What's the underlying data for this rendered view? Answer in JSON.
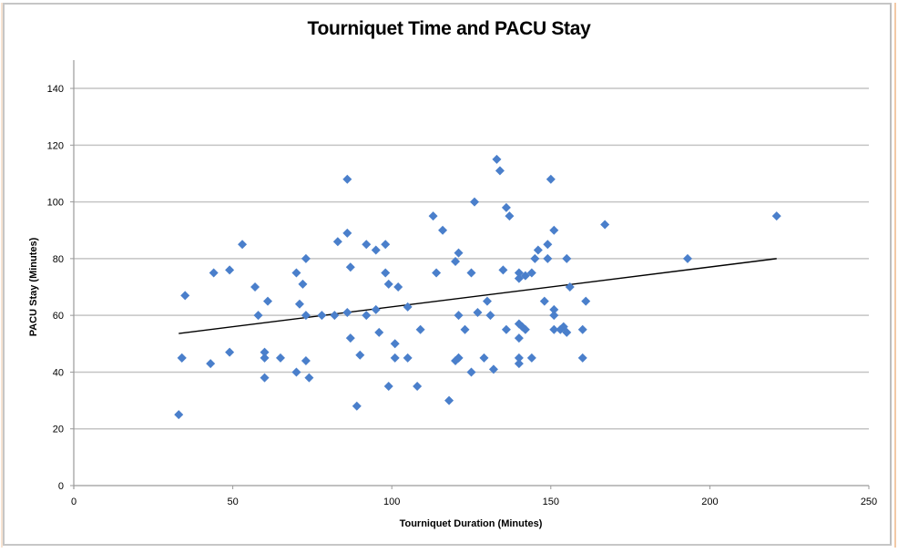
{
  "chart_data": {
    "type": "scatter",
    "title": "Tourniquet Time and PACU Stay",
    "xlabel": "Tourniquet Duration (Minutes)",
    "ylabel": "PACU Stay (Minutes)",
    "xlim": [
      0,
      250
    ],
    "ylim": [
      0,
      150
    ],
    "xticks": [
      0,
      50,
      100,
      150,
      200,
      250
    ],
    "yticks": [
      0,
      20,
      40,
      60,
      80,
      100,
      120,
      140
    ],
    "grid": {
      "horizontal": true,
      "vertical": false
    },
    "legend": null,
    "marker": {
      "shape": "diamond",
      "color": "#4a7fcb"
    },
    "trendline": {
      "type": "linear",
      "color": "#000000",
      "x": [
        33,
        221
      ],
      "y": [
        53.6,
        80
      ]
    },
    "series": [
      {
        "name": "PACU Stay",
        "points": [
          [
            33,
            25
          ],
          [
            34,
            45
          ],
          [
            34,
            45
          ],
          [
            35,
            67
          ],
          [
            43,
            43
          ],
          [
            44,
            75
          ],
          [
            49,
            47
          ],
          [
            49,
            76
          ],
          [
            53,
            85
          ],
          [
            57,
            70
          ],
          [
            58,
            60
          ],
          [
            60,
            47
          ],
          [
            60,
            45
          ],
          [
            60,
            38
          ],
          [
            61,
            65
          ],
          [
            65,
            45
          ],
          [
            70,
            75
          ],
          [
            70,
            40
          ],
          [
            71,
            64
          ],
          [
            72,
            71
          ],
          [
            73,
            80
          ],
          [
            73,
            60
          ],
          [
            73,
            44
          ],
          [
            74,
            38
          ],
          [
            78,
            60
          ],
          [
            82,
            60
          ],
          [
            83,
            86
          ],
          [
            86,
            108
          ],
          [
            86,
            61
          ],
          [
            86,
            89
          ],
          [
            87,
            77
          ],
          [
            87,
            52
          ],
          [
            89,
            28
          ],
          [
            90,
            46
          ],
          [
            92,
            85
          ],
          [
            92,
            60
          ],
          [
            95,
            83
          ],
          [
            95,
            62
          ],
          [
            96,
            54
          ],
          [
            98,
            85
          ],
          [
            98,
            75
          ],
          [
            99,
            35
          ],
          [
            99,
            71
          ],
          [
            101,
            50
          ],
          [
            101,
            45
          ],
          [
            102,
            70
          ],
          [
            105,
            45
          ],
          [
            105,
            63
          ],
          [
            108,
            35
          ],
          [
            109,
            55
          ],
          [
            113,
            95
          ],
          [
            114,
            75
          ],
          [
            116,
            90
          ],
          [
            118,
            30
          ],
          [
            120,
            79
          ],
          [
            120,
            44
          ],
          [
            121,
            45
          ],
          [
            121,
            82
          ],
          [
            121,
            60
          ],
          [
            121,
            45
          ],
          [
            123,
            55
          ],
          [
            125,
            75
          ],
          [
            125,
            40
          ],
          [
            126,
            100
          ],
          [
            127,
            61
          ],
          [
            129,
            45
          ],
          [
            130,
            65
          ],
          [
            131,
            60
          ],
          [
            132,
            41
          ],
          [
            133,
            115
          ],
          [
            134,
            111
          ],
          [
            135,
            76
          ],
          [
            136,
            98
          ],
          [
            136,
            55
          ],
          [
            137,
            95
          ],
          [
            140,
            75
          ],
          [
            140,
            73
          ],
          [
            140,
            57
          ],
          [
            140,
            52
          ],
          [
            140,
            45
          ],
          [
            140,
            43
          ],
          [
            141,
            56
          ],
          [
            142,
            55
          ],
          [
            142,
            74
          ],
          [
            144,
            75
          ],
          [
            144,
            45
          ],
          [
            145,
            80
          ],
          [
            146,
            83
          ],
          [
            148,
            65
          ],
          [
            149,
            85
          ],
          [
            149,
            80
          ],
          [
            150,
            108
          ],
          [
            151,
            90
          ],
          [
            151,
            62
          ],
          [
            151,
            60
          ],
          [
            151,
            55
          ],
          [
            153,
            55
          ],
          [
            154,
            56
          ],
          [
            155,
            54
          ],
          [
            155,
            80
          ],
          [
            156,
            70
          ],
          [
            160,
            55
          ],
          [
            160,
            45
          ],
          [
            161,
            65
          ],
          [
            167,
            92
          ],
          [
            193,
            80
          ],
          [
            221,
            95
          ]
        ]
      }
    ]
  }
}
